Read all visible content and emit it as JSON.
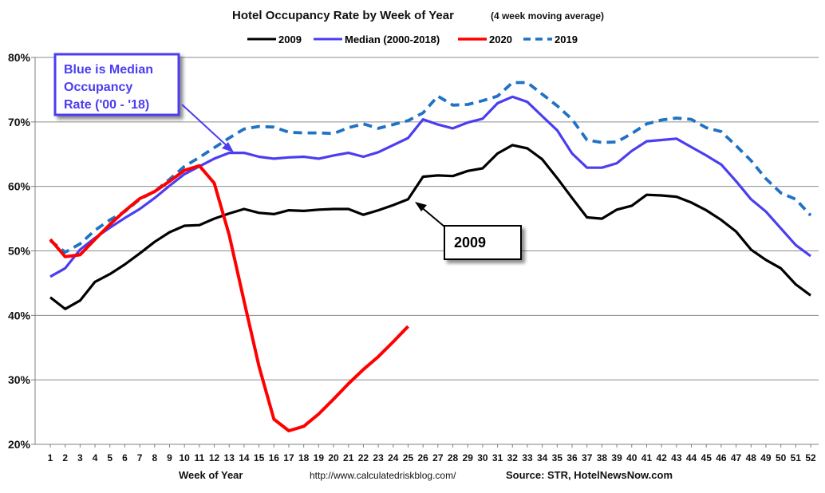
{
  "chart_data": {
    "type": "line",
    "title": "Hotel Occupancy Rate by  Week of Year",
    "subtitle": "(4 week moving average)",
    "xlabel": "Week of Year",
    "ylabel": "",
    "ylim": [
      20,
      80
    ],
    "yticks": [
      20,
      30,
      40,
      50,
      60,
      70,
      80
    ],
    "ytick_suffix": "%",
    "grid": true,
    "legend_position": "top-center",
    "x": [
      1,
      2,
      3,
      4,
      5,
      6,
      7,
      8,
      9,
      10,
      11,
      12,
      13,
      14,
      15,
      16,
      17,
      18,
      19,
      20,
      21,
      22,
      23,
      24,
      25,
      26,
      27,
      28,
      29,
      30,
      31,
      32,
      33,
      34,
      35,
      36,
      37,
      38,
      39,
      40,
      41,
      42,
      43,
      44,
      45,
      46,
      47,
      48,
      49,
      50,
      51,
      52
    ],
    "series": [
      {
        "name": "2009",
        "color": "#000000",
        "dash": "solid",
        "values": [
          42.8,
          41.0,
          42.3,
          45.2,
          46.4,
          47.9,
          49.6,
          51.4,
          52.9,
          53.9,
          54.0,
          55.0,
          55.8,
          56.5,
          55.9,
          55.7,
          56.3,
          56.2,
          56.4,
          56.5,
          56.5,
          55.6,
          56.3,
          57.1,
          58.0,
          61.5,
          61.7,
          61.6,
          62.4,
          62.8,
          65.1,
          66.4,
          65.9,
          64.2,
          61.3,
          58.2,
          55.2,
          55.0,
          56.4,
          57.0,
          58.7,
          58.6,
          58.4,
          57.5,
          56.3,
          54.8,
          53.0,
          50.2,
          48.6,
          47.3,
          44.8,
          43.1
        ]
      },
      {
        "name": "Median (2000-2018)",
        "color": "#4b3df0",
        "dash": "solid",
        "values": [
          46.0,
          47.3,
          50.2,
          52.0,
          53.6,
          55.1,
          56.5,
          58.2,
          60.1,
          61.9,
          63.1,
          64.3,
          65.2,
          65.2,
          64.6,
          64.3,
          64.5,
          64.6,
          64.3,
          64.8,
          65.2,
          64.6,
          65.3,
          66.4,
          67.5,
          70.4,
          69.6,
          69.0,
          69.9,
          70.5,
          72.9,
          73.9,
          73.1,
          70.9,
          68.7,
          65.1,
          62.9,
          62.9,
          63.6,
          65.5,
          67.0,
          67.2,
          67.4,
          66.1,
          64.8,
          63.4,
          60.8,
          58.0,
          56.1,
          53.5,
          50.9,
          49.2
        ]
      },
      {
        "name": "2020",
        "color": "#ff0000",
        "dash": "solid",
        "values": [
          51.8,
          49.1,
          49.4,
          51.8,
          54.1,
          56.2,
          58.1,
          59.2,
          60.8,
          62.5,
          63.2,
          60.5,
          52.5,
          42.2,
          32.1,
          23.9,
          22.1,
          22.8,
          24.7,
          27.0,
          29.4,
          31.6,
          33.6,
          35.9,
          38.3,
          null,
          null,
          null,
          null,
          null,
          null,
          null,
          null,
          null,
          null,
          null,
          null,
          null,
          null,
          null,
          null,
          null,
          null,
          null,
          null,
          null,
          null,
          null,
          null,
          null,
          null,
          null
        ]
      },
      {
        "name": "2019",
        "color": "#1f72c4",
        "dash": "dashed",
        "values": [
          51.6,
          49.8,
          51.1,
          53.2,
          54.8,
          56.1,
          58.0,
          59.2,
          61.1,
          63.1,
          64.5,
          66.0,
          67.5,
          68.9,
          69.3,
          69.2,
          68.4,
          68.3,
          68.3,
          68.2,
          69.1,
          69.7,
          69.0,
          69.6,
          70.2,
          71.4,
          74.0,
          72.6,
          72.7,
          73.3,
          74.0,
          76.1,
          76.1,
          74.3,
          72.5,
          70.4,
          67.2,
          66.8,
          66.9,
          68.2,
          69.7,
          70.3,
          70.6,
          70.4,
          69.1,
          68.5,
          66.3,
          64.0,
          61.2,
          59.0,
          58.0,
          55.5
        ]
      }
    ],
    "annotations": [
      {
        "text_lines": [
          "Blue is Median",
          "Occupancy",
          "Rate ('00 - '18)"
        ],
        "color": "#4b3df0",
        "points_to_week": 13,
        "points_to_value": 66.5
      },
      {
        "text": "2009",
        "color": "#000000",
        "points_to_week": 25,
        "points_to_value": 58.0
      }
    ],
    "footer": {
      "url": "http://www.calculatedriskblog.com/",
      "source": "Source: STR, HotelNewsNow.com"
    }
  }
}
